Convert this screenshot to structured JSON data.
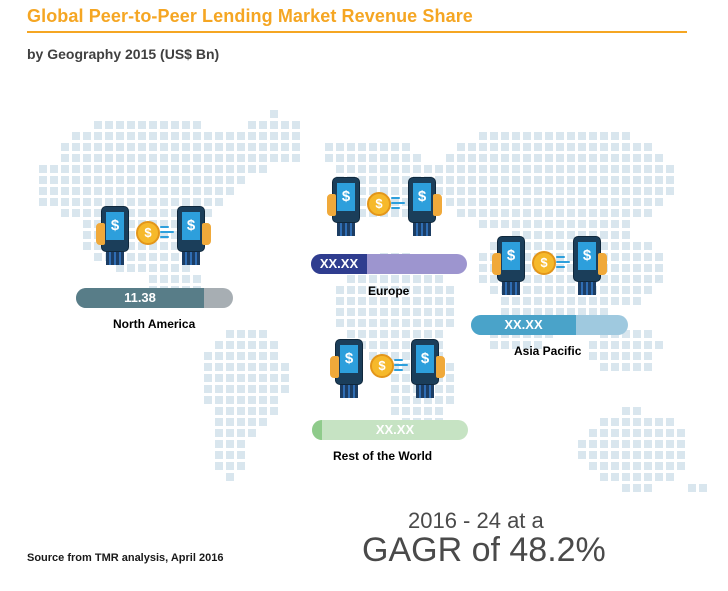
{
  "header": {
    "title": "Global Peer-to-Peer Lending Market Revenue Share",
    "subtitle": "by Geography 2015 (US$ Bn)"
  },
  "colors": {
    "title": "#f5a623",
    "map_dot": "#d9e6ee",
    "north_america": "#587d88",
    "europe": "#2f3d8f",
    "asia_pacific": "#4aa3c9",
    "rest_of_world": "#8fcb8b"
  },
  "icons": [
    "smartphone-icon",
    "hand-icon",
    "dollar-coin-icon",
    "dollar-sign-icon"
  ],
  "chart_data": {
    "type": "map",
    "regions": [
      {
        "name": "North America",
        "value_label": "11.38",
        "value": 11.38
      },
      {
        "name": "Europe",
        "value_label": "XX.XX"
      },
      {
        "name": "Asia Pacific",
        "value_label": "XX.XX"
      },
      {
        "name": "Rest of the World",
        "value_label": "XX.XX"
      }
    ]
  },
  "footer": {
    "source": "Source from TMR analysis, April 2016",
    "cagr_period": "2016 - 24 at a",
    "cagr_value": "GAGR of 48.2%"
  }
}
